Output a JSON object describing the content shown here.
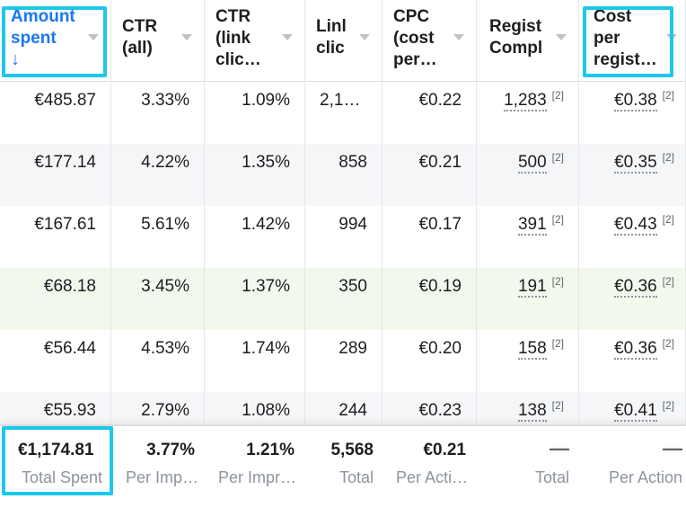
{
  "headers": [
    {
      "label": "Amount\nspent",
      "sort_arrow": "↓"
    },
    {
      "label": "CTR\n(all)"
    },
    {
      "label": "CTR\n(link\nclic…"
    },
    {
      "label": "Linl\nclic"
    },
    {
      "label": "CPC\n(cost\nper…"
    },
    {
      "label": "Regist\nCompl"
    },
    {
      "label": "Cost\nper\nregist…"
    }
  ],
  "rows": [
    {
      "amount": "€485.87",
      "ctr_all": "3.33%",
      "ctr_link": "1.09%",
      "link_clicks": "2,1…",
      "cpc": "€0.22",
      "registrations": "1,283",
      "reg_sup": "[2]",
      "cost_per_reg": "€0.38",
      "cpr_sup": "[2]"
    },
    {
      "amount": "€177.14",
      "ctr_all": "4.22%",
      "ctr_link": "1.35%",
      "link_clicks": "858",
      "cpc": "€0.21",
      "registrations": "500",
      "reg_sup": "[2]",
      "cost_per_reg": "€0.35",
      "cpr_sup": "[2]"
    },
    {
      "amount": "€167.61",
      "ctr_all": "5.61%",
      "ctr_link": "1.42%",
      "link_clicks": "994",
      "cpc": "€0.17",
      "registrations": "391",
      "reg_sup": "[2]",
      "cost_per_reg": "€0.43",
      "cpr_sup": "[2]"
    },
    {
      "amount": "€68.18",
      "ctr_all": "3.45%",
      "ctr_link": "1.37%",
      "link_clicks": "350",
      "cpc": "€0.19",
      "registrations": "191",
      "reg_sup": "[2]",
      "cost_per_reg": "€0.36",
      "cpr_sup": "[2]"
    },
    {
      "amount": "€56.44",
      "ctr_all": "4.53%",
      "ctr_link": "1.74%",
      "link_clicks": "289",
      "cpc": "€0.20",
      "registrations": "158",
      "reg_sup": "[2]",
      "cost_per_reg": "€0.36",
      "cpr_sup": "[2]"
    },
    {
      "amount": "€55.93",
      "ctr_all": "2.79%",
      "ctr_link": "1.08%",
      "link_clicks": "244",
      "cpc": "€0.23",
      "registrations": "138",
      "reg_sup": "[2]",
      "cost_per_reg": "€0.41",
      "cpr_sup": "[2]"
    }
  ],
  "totals": {
    "amount": {
      "value": "€1,174.81",
      "label": "Total Spent"
    },
    "ctr_all": {
      "value": "3.77%",
      "label": "Per Imp…"
    },
    "ctr_link": {
      "value": "1.21%",
      "label": "Per Impr…"
    },
    "link_clicks": {
      "value": "5,568",
      "label": "Total"
    },
    "cpc": {
      "value": "€0.21",
      "label": "Per Acti…"
    },
    "registrations": {
      "value": "—",
      "label": "Total"
    },
    "cost_per_reg": {
      "value": "—",
      "label": "Per Action"
    }
  },
  "colors": {
    "accent": "#1877f2",
    "highlight": "#1ec8e8",
    "row_grey": "#f5f6f7",
    "row_green": "#f2f9ec"
  }
}
